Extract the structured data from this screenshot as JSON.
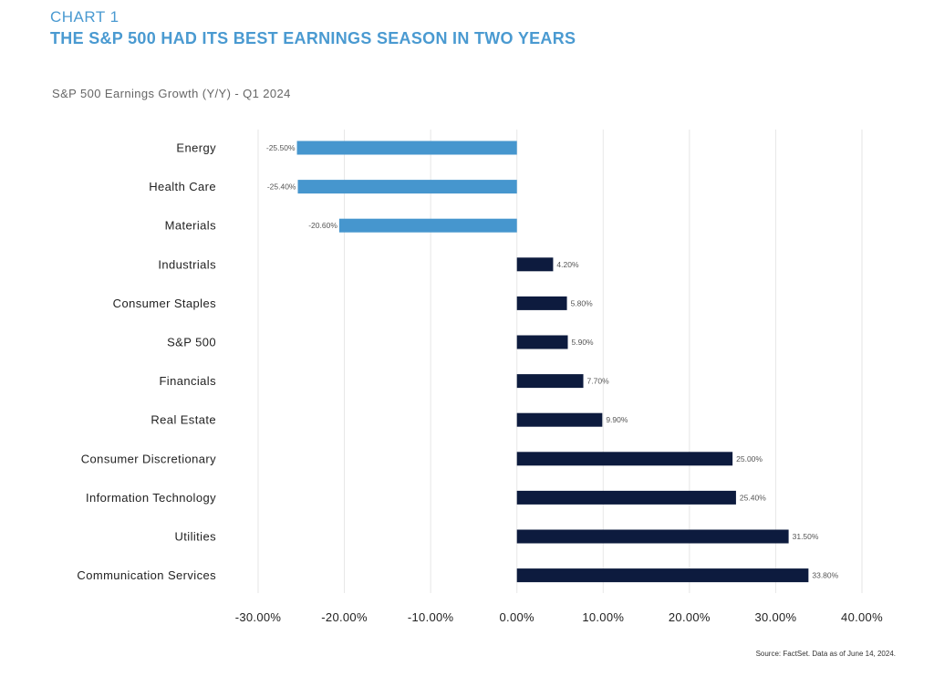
{
  "header": {
    "eyebrow": "CHART 1",
    "title": "THE S&P 500 HAD ITS BEST EARNINGS SEASON IN TWO YEARS"
  },
  "footer": {
    "source": "Source: FactSet. Data as of June 14, 2024."
  },
  "colors": {
    "negative": "#4696ce",
    "positive": "#0d1b3e",
    "title": "#4a9ad1"
  },
  "chart_data": {
    "type": "bar",
    "orientation": "horizontal",
    "title": "S&P 500 Earnings Growth (Y/Y) - Q1 2024",
    "xlabel": "",
    "ylabel": "",
    "xlim": [
      -30,
      40
    ],
    "x_ticks": [
      -30,
      -20,
      -10,
      0,
      10,
      20,
      30,
      40
    ],
    "x_tick_labels": [
      "-30.00%",
      "-20.00%",
      "-10.00%",
      "0.00%",
      "10.00%",
      "20.00%",
      "30.00%",
      "40.00%"
    ],
    "grid": "vertical",
    "legend": "none",
    "categories": [
      "Energy",
      "Health Care",
      "Materials",
      "Industrials",
      "Consumer Staples",
      "S&P 500",
      "Financials",
      "Real Estate",
      "Consumer Discretionary",
      "Information Technology",
      "Utilities",
      "Communication Services"
    ],
    "values": [
      -25.5,
      -25.4,
      -20.6,
      4.2,
      5.8,
      5.9,
      7.7,
      9.9,
      25.0,
      25.4,
      31.5,
      33.8
    ],
    "data_labels": [
      "-25.50%",
      "-25.40%",
      "-20.60%",
      "4.20%",
      "5.80%",
      "5.90%",
      "7.70%",
      "9.90%",
      "25.00%",
      "25.40%",
      "31.50%",
      "33.80%"
    ]
  }
}
